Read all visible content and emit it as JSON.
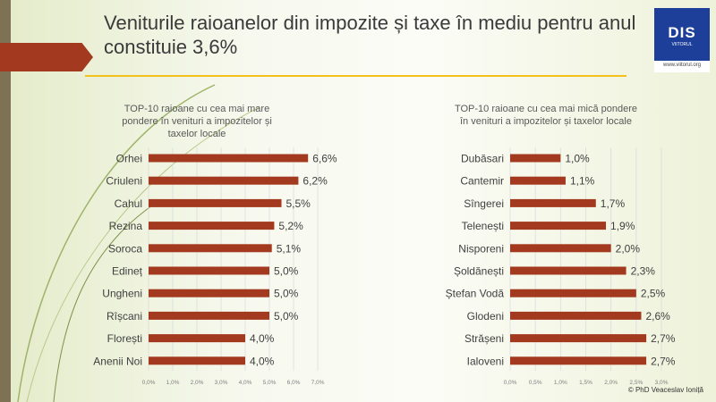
{
  "slide": {
    "title": "Veniturile raioanelor din impozite și taxe în mediu pentru anul constituie 3,6%",
    "logo_text": "DIS",
    "logo_subtext": "VIITORUL",
    "logo_url": "www.viitorul.org",
    "copyright": "© PhD Veaceslav Ioniță",
    "colors": {
      "bar": "#a33a1f",
      "accent": "#f2c21a",
      "banner": "#a33a1f"
    }
  },
  "chart_data": [
    {
      "type": "bar",
      "orientation": "horizontal",
      "title": "TOP-10 raioane cu cea mai mare pondere în venituri a impozitelor și taxelor locale",
      "categories": [
        "Orhei",
        "Criuleni",
        "Cahul",
        "Rezina",
        "Soroca",
        "Edineț",
        "Ungheni",
        "Rîșcani",
        "Florești",
        "Anenii Noi"
      ],
      "values": [
        6.6,
        6.2,
        5.5,
        5.2,
        5.1,
        5.0,
        5.0,
        5.0,
        4.0,
        4.0
      ],
      "labels": [
        "6,6%",
        "6,2%",
        "5,5%",
        "5,2%",
        "5,1%",
        "5,0%",
        "5,0%",
        "5,0%",
        "4,0%",
        "4,0%"
      ],
      "xlim": [
        0,
        7
      ],
      "ticks": [
        "0,0%",
        "1,0%",
        "2,0%",
        "3,0%",
        "4,0%",
        "5,0%",
        "6,0%",
        "7,0%"
      ],
      "grid": true
    },
    {
      "type": "bar",
      "orientation": "horizontal",
      "title": "TOP-10 raioane cu cea mai mică pondere în venituri a impozitelor și taxelor locale",
      "categories": [
        "Dubăsari",
        "Cantemir",
        "Sîngerei",
        "Telenești",
        "Nisporeni",
        "Șoldănești",
        "Ștefan Vodă",
        "Glodeni",
        "Strășeni",
        "Ialoveni"
      ],
      "values": [
        1.0,
        1.1,
        1.7,
        1.9,
        2.0,
        2.3,
        2.5,
        2.6,
        2.7,
        2.7
      ],
      "labels": [
        "1,0%",
        "1,1%",
        "1,7%",
        "1,9%",
        "2,0%",
        "2,3%",
        "2,5%",
        "2,6%",
        "2,7%",
        "2,7%"
      ],
      "xlim": [
        0,
        3
      ],
      "ticks": [
        "0,0%",
        "0,5%",
        "1,0%",
        "1,5%",
        "2,0%",
        "2,5%",
        "3,0%"
      ],
      "grid": true
    }
  ]
}
